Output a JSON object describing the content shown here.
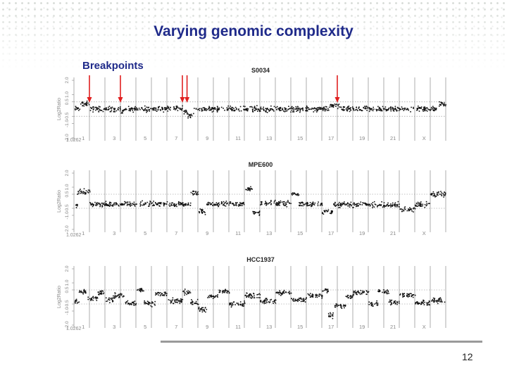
{
  "slide": {
    "title": "Varying genomic complexity",
    "annotation": "Breakpoints",
    "page_number": "12"
  },
  "colors": {
    "title": "#1f2a8a",
    "arrow": "#e02020",
    "points": "#111111",
    "grid": "#888888",
    "label": "#888888"
  },
  "chart_data": [
    {
      "type": "scatter",
      "title": "S0034",
      "ylabel": "Log2Ratio",
      "ylim": [
        -2.2,
        2.2
      ],
      "ytick_labels": [
        "2.0",
        "1.0",
        "0.5",
        "-0.5",
        "-1.0",
        "-2.0"
      ],
      "ytick_values": [
        2.0,
        1.0,
        0.5,
        -0.5,
        -1.0,
        -2.0
      ],
      "x_first_label": "1.0262",
      "chromosome_labels": [
        "1",
        "3",
        "5",
        "7",
        "9",
        "11",
        "13",
        "15",
        "17",
        "19",
        "21",
        "X"
      ],
      "breakpoint_arrows": [
        2,
        4,
        8,
        8.3,
        18
      ],
      "segments": [
        {
          "from": 1,
          "to": 1.35,
          "y": 0.0
        },
        {
          "from": 1.35,
          "to": 2.0,
          "y": 0.35
        },
        {
          "from": 2.0,
          "to": 4.0,
          "y": 0.0
        },
        {
          "from": 4.0,
          "to": 4.1,
          "y": -0.25
        },
        {
          "from": 4.1,
          "to": 7.0,
          "y": 0.0
        },
        {
          "from": 7.0,
          "to": 8.0,
          "y": 0.05
        },
        {
          "from": 8.0,
          "to": 8.3,
          "y": -0.2
        },
        {
          "from": 8.3,
          "to": 8.7,
          "y": -0.45
        },
        {
          "from": 8.7,
          "to": 17.5,
          "y": 0.0
        },
        {
          "from": 17.5,
          "to": 18.2,
          "y": 0.2
        },
        {
          "from": 18.2,
          "to": 24.5,
          "y": 0.0
        },
        {
          "from": 24.5,
          "to": 25.0,
          "y": 0.35
        }
      ]
    },
    {
      "type": "scatter",
      "title": "MPE600",
      "ylabel": "Log2Ratio",
      "ylim": [
        -2.2,
        2.2
      ],
      "ytick_labels": [
        "2.0",
        "1.0",
        "0.5",
        "-0.5",
        "-1.0",
        "-2.0"
      ],
      "ytick_values": [
        2.0,
        1.0,
        0.5,
        -0.5,
        -1.0,
        -2.0
      ],
      "x_first_label": "1.0262",
      "chromosome_labels": [
        "1",
        "3",
        "5",
        "7",
        "9",
        "11",
        "13",
        "15",
        "17",
        "19",
        "21",
        "X"
      ],
      "breakpoint_arrows": [],
      "segments": [
        {
          "from": 1,
          "to": 1.2,
          "y": -0.3
        },
        {
          "from": 1.2,
          "to": 2.0,
          "y": 0.65
        },
        {
          "from": 2.0,
          "to": 8.5,
          "y": -0.2
        },
        {
          "from": 8.5,
          "to": 9.0,
          "y": 0.6
        },
        {
          "from": 9.0,
          "to": 9.5,
          "y": -0.75
        },
        {
          "from": 9.5,
          "to": 12.0,
          "y": -0.2
        },
        {
          "from": 12.0,
          "to": 12.5,
          "y": 0.9
        },
        {
          "from": 12.5,
          "to": 13.0,
          "y": -0.8
        },
        {
          "from": 13.0,
          "to": 15.0,
          "y": -0.15
        },
        {
          "from": 15.0,
          "to": 15.5,
          "y": 0.5
        },
        {
          "from": 15.5,
          "to": 17.0,
          "y": -0.2
        },
        {
          "from": 17.0,
          "to": 17.7,
          "y": -0.75
        },
        {
          "from": 17.7,
          "to": 22.0,
          "y": -0.25
        },
        {
          "from": 22.0,
          "to": 23.0,
          "y": -0.6
        },
        {
          "from": 23.0,
          "to": 24.0,
          "y": -0.2
        },
        {
          "from": 24.0,
          "to": 25.0,
          "y": 0.5
        }
      ]
    },
    {
      "type": "scatter",
      "title": "HCC1937",
      "ylabel": "Log2Ratio",
      "ylim": [
        -2.2,
        2.2
      ],
      "ytick_labels": [
        "2.0",
        "1.0",
        "0.5",
        "-0.5",
        "-1.0",
        "-2.0"
      ],
      "ytick_values": [
        2.0,
        1.0,
        0.5,
        -0.5,
        -1.0,
        -2.0
      ],
      "x_first_label": "1.0262",
      "chromosome_labels": [
        "1",
        "3",
        "5",
        "7",
        "9",
        "11",
        "13",
        "15",
        "17",
        "19",
        "21",
        "X"
      ],
      "breakpoint_arrows": [],
      "segments": [
        {
          "from": 1,
          "to": 1.3,
          "y": -0.3
        },
        {
          "from": 1.3,
          "to": 1.8,
          "y": 0.4
        },
        {
          "from": 1.8,
          "to": 2.5,
          "y": -0.1
        },
        {
          "from": 2.5,
          "to": 3.0,
          "y": 0.3
        },
        {
          "from": 3.0,
          "to": 3.5,
          "y": -0.2
        },
        {
          "from": 3.5,
          "to": 4.2,
          "y": 0.1
        },
        {
          "from": 4.2,
          "to": 5.0,
          "y": -0.45
        },
        {
          "from": 5.0,
          "to": 5.5,
          "y": 0.5
        },
        {
          "from": 5.5,
          "to": 6.2,
          "y": -0.5
        },
        {
          "from": 6.2,
          "to": 7.0,
          "y": 0.2
        },
        {
          "from": 7.0,
          "to": 8.0,
          "y": -0.3
        },
        {
          "from": 8.0,
          "to": 8.5,
          "y": 0.35
        },
        {
          "from": 8.5,
          "to": 9.0,
          "y": -0.4
        },
        {
          "from": 9.0,
          "to": 9.6,
          "y": -0.9
        },
        {
          "from": 9.6,
          "to": 10.3,
          "y": 0.0
        },
        {
          "from": 10.3,
          "to": 11.0,
          "y": 0.4
        },
        {
          "from": 11.0,
          "to": 12.0,
          "y": -0.5
        },
        {
          "from": 12.0,
          "to": 13.0,
          "y": 0.1
        },
        {
          "from": 13.0,
          "to": 14.0,
          "y": -0.3
        },
        {
          "from": 14.0,
          "to": 15.0,
          "y": 0.3
        },
        {
          "from": 15.0,
          "to": 16.0,
          "y": -0.2
        },
        {
          "from": 16.0,
          "to": 17.0,
          "y": 0.1
        },
        {
          "from": 17.0,
          "to": 17.4,
          "y": 0.45
        },
        {
          "from": 17.4,
          "to": 17.8,
          "y": -1.3
        },
        {
          "from": 17.8,
          "to": 18.5,
          "y": -0.6
        },
        {
          "from": 18.5,
          "to": 19.0,
          "y": 0.0
        },
        {
          "from": 19.0,
          "to": 20.0,
          "y": 0.3
        },
        {
          "from": 20.0,
          "to": 20.6,
          "y": -0.5
        },
        {
          "from": 20.6,
          "to": 21.3,
          "y": 0.4
        },
        {
          "from": 21.3,
          "to": 22.0,
          "y": -0.4
        },
        {
          "from": 22.0,
          "to": 23.0,
          "y": 0.1
        },
        {
          "from": 23.0,
          "to": 24.0,
          "y": -0.4
        },
        {
          "from": 24.0,
          "to": 25.0,
          "y": -0.25
        }
      ]
    }
  ]
}
